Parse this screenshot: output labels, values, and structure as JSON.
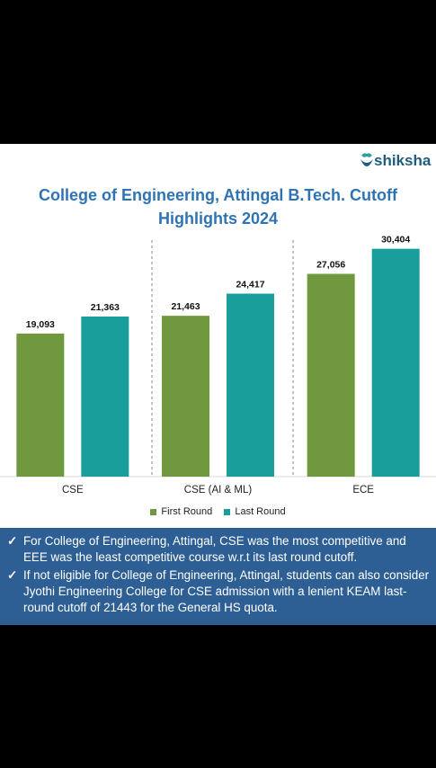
{
  "brand": {
    "name": "shiksha",
    "logo_color": "#1f5d7e",
    "logo_accent": "#2aa3a3"
  },
  "notes": [
    "For College of Engineering, Attingal, CSE was the most competitive and EEE was the least competitive course w.r.t its last round cutoff.",
    "If not eligible for College of Engineering, Attingal, students can also consider Jyothi Engineering College for CSE admission with a lenient KEAM last-round cutoff of 21443 for the General HS quota."
  ],
  "check_mark": "✓",
  "colors": {
    "first_round": "#70993f",
    "last_round": "#199e9b",
    "title": "#2e74b5",
    "notes_bg": "#2e5f94"
  },
  "chart_data": {
    "type": "bar",
    "title_lines": [
      "College of Engineering, Attingal B.Tech. Cutoff",
      "Highlights 2024"
    ],
    "categories": [
      "CSE",
      "CSE (AI & ML)",
      "ECE"
    ],
    "series": [
      {
        "name": "First Round",
        "values": [
          19093,
          21463,
          27056
        ],
        "labels": [
          "19,093",
          "21,463",
          "27,056"
        ],
        "color": "#70993f"
      },
      {
        "name": "Last Round",
        "values": [
          21363,
          24417,
          30404
        ],
        "labels": [
          "21,363",
          "24,417",
          "30,404"
        ],
        "color": "#199e9b"
      }
    ],
    "ylim": [
      0,
      33000
    ],
    "grid": false,
    "group_separators": "dashed",
    "legend_position": "bottom"
  }
}
